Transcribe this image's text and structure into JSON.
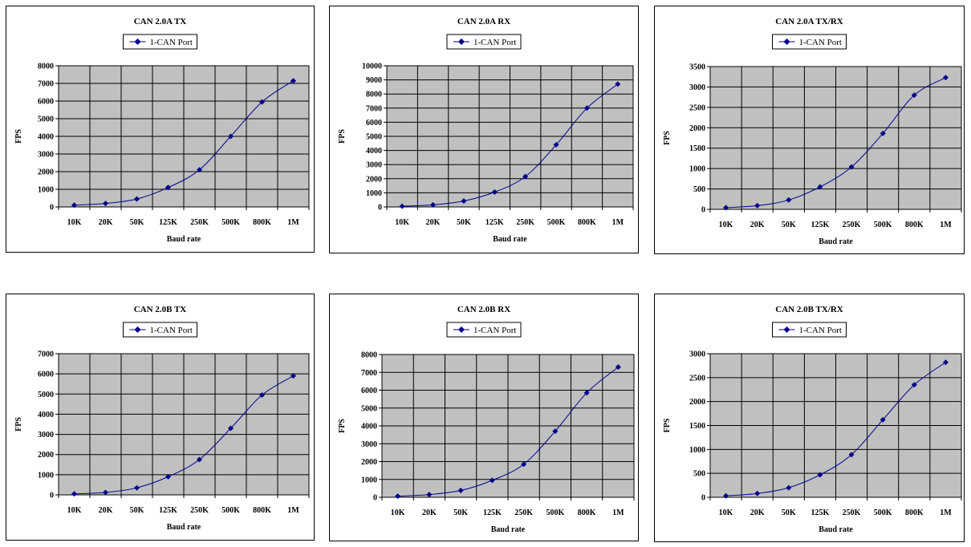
{
  "chart_data": [
    {
      "type": "line",
      "title": "CAN 2.0A TX",
      "xlabel": "Baud rate",
      "ylabel": "FPS",
      "categories": [
        "10K",
        "20K",
        "50K",
        "125K",
        "250K",
        "500K",
        "800K",
        "1M"
      ],
      "ylim": [
        0,
        8000
      ],
      "ystep": 1000,
      "grid": true,
      "legend": "top-center",
      "series": [
        {
          "name": "1-CAN Port",
          "color": "#00008b",
          "values": [
            100,
            200,
            450,
            1100,
            2100,
            4000,
            5950,
            7150
          ]
        }
      ]
    },
    {
      "type": "line",
      "title": "CAN 2.0A RX",
      "xlabel": "Baud rate",
      "ylabel": "FPS",
      "categories": [
        "10K",
        "20K",
        "50K",
        "125K",
        "250K",
        "500K",
        "800K",
        "1M"
      ],
      "ylim": [
        0,
        10000
      ],
      "ystep": 1000,
      "grid": true,
      "legend": "top-center",
      "series": [
        {
          "name": "1-CAN Port",
          "color": "#00008b",
          "values": [
            50,
            150,
            420,
            1050,
            2150,
            4400,
            7000,
            8700
          ]
        }
      ]
    },
    {
      "type": "line",
      "title": "CAN 2.0A TX/RX",
      "xlabel": "Baud rate",
      "ylabel": "FPS",
      "categories": [
        "10K",
        "20K",
        "50K",
        "125K",
        "250K",
        "500K",
        "800K",
        "1M"
      ],
      "ylim": [
        0,
        3500
      ],
      "ystep": 500,
      "grid": true,
      "legend": "top-center",
      "series": [
        {
          "name": "1-CAN Port",
          "color": "#00008b",
          "values": [
            40,
            90,
            230,
            550,
            1040,
            1860,
            2800,
            3230
          ]
        }
      ]
    },
    {
      "type": "line",
      "title": "CAN 2.0B TX",
      "xlabel": "Baud rate",
      "ylabel": "FPS",
      "categories": [
        "10K",
        "20K",
        "50K",
        "125K",
        "250K",
        "500K",
        "800K",
        "1M"
      ],
      "ylim": [
        0,
        7000
      ],
      "ystep": 1000,
      "grid": true,
      "legend": "top-center",
      "series": [
        {
          "name": "1-CAN Port",
          "color": "#00008b",
          "values": [
            50,
            120,
            350,
            900,
            1750,
            3300,
            4950,
            5900
          ]
        }
      ]
    },
    {
      "type": "line",
      "title": "CAN 2.0B RX",
      "xlabel": "Baud rate",
      "ylabel": "FPS",
      "categories": [
        "10K",
        "20K",
        "50K",
        "125K",
        "250K",
        "500K",
        "800K",
        "1M"
      ],
      "ylim": [
        0,
        8000
      ],
      "ystep": 1000,
      "grid": true,
      "legend": "top-center",
      "series": [
        {
          "name": "1-CAN Port",
          "color": "#00008b",
          "values": [
            60,
            150,
            380,
            950,
            1850,
            3700,
            5850,
            7300
          ]
        }
      ]
    },
    {
      "type": "line",
      "title": "CAN 2.0B TX/RX",
      "xlabel": "Baud rate",
      "ylabel": "FPS",
      "categories": [
        "10K",
        "20K",
        "50K",
        "125K",
        "250K",
        "500K",
        "800K",
        "1M"
      ],
      "ylim": [
        0,
        3000
      ],
      "ystep": 500,
      "grid": true,
      "legend": "top-center",
      "series": [
        {
          "name": "1-CAN Port",
          "color": "#00008b",
          "values": [
            30,
            80,
            200,
            470,
            890,
            1620,
            2350,
            2820
          ]
        }
      ]
    }
  ]
}
